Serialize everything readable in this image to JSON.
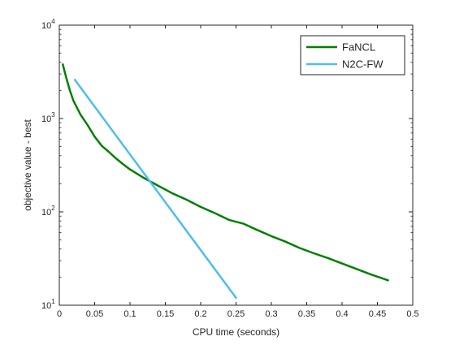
{
  "chart_data": {
    "type": "line",
    "title": "",
    "xlabel": "CPU time (seconds)",
    "ylabel": "objective value - best",
    "xlim": [
      0,
      0.5
    ],
    "ylim": [
      10,
      10000
    ],
    "yscale": "log",
    "grid": false,
    "legend_position": "top-right",
    "x_ticks": [
      "0",
      "0.05",
      "0.1",
      "0.15",
      "0.2",
      "0.25",
      "0.3",
      "0.35",
      "0.4",
      "0.45",
      "0.5"
    ],
    "y_ticks": [
      {
        "base": "10",
        "exp": "1"
      },
      {
        "base": "10",
        "exp": "2"
      },
      {
        "base": "10",
        "exp": "3"
      },
      {
        "base": "10",
        "exp": "4"
      }
    ],
    "series": [
      {
        "name": "FaNCL",
        "color": "#008000",
        "x": [
          0.005,
          0.01,
          0.015,
          0.02,
          0.03,
          0.04,
          0.05,
          0.06,
          0.07,
          0.08,
          0.09,
          0.1,
          0.12,
          0.14,
          0.16,
          0.18,
          0.2,
          0.22,
          0.24,
          0.26,
          0.28,
          0.3,
          0.32,
          0.34,
          0.36,
          0.38,
          0.4,
          0.42,
          0.44,
          0.465
        ],
        "y": [
          3800,
          2700,
          2000,
          1550,
          1100,
          850,
          640,
          510,
          440,
          375,
          325,
          285,
          230,
          190,
          158,
          135,
          113,
          97,
          82,
          75,
          64,
          55,
          48,
          41,
          36,
          32,
          28,
          24.5,
          21.5,
          18.5
        ]
      },
      {
        "name": "N2C-FW",
        "color": "#4dbeee",
        "x": [
          0.022,
          0.25
        ],
        "y": [
          2600,
          12
        ]
      }
    ]
  }
}
